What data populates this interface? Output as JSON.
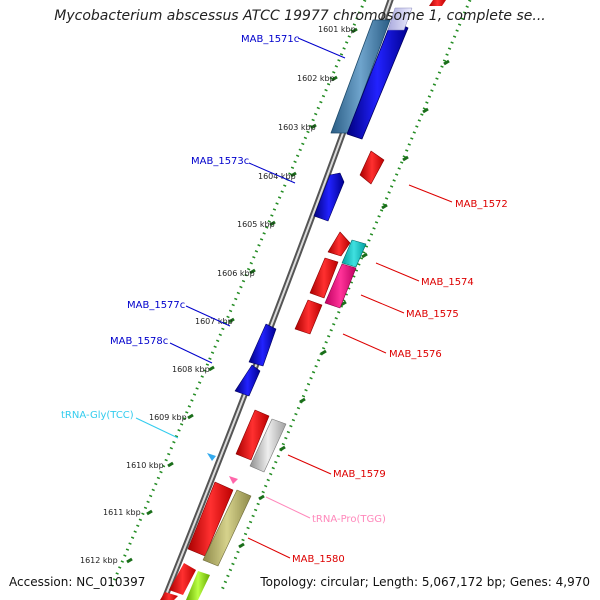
{
  "title": "Mycobacterium abscessus ATCC 19977 chromosome 1, complete se...",
  "footer": {
    "accession": "Accession: NC_010397",
    "topology": "Topology: circular; Length: 5,067,172 bp; Genes: 4,970"
  },
  "colors": {
    "cds_plus": "#ff0000",
    "cds_minus": "#0000ee",
    "trna": "#33ccee",
    "rrna_like": "#ff1493",
    "pseudo": "#c0c0c0",
    "other": "#bdb76b",
    "tick_dots": "#228b22"
  },
  "ticks": [
    "1601 kbp",
    "1602 kbp",
    "1603 kbp",
    "1604 kbp",
    "1605 kbp",
    "1606 kbp",
    "1607 kbp",
    "1608 kbp",
    "1609 kbp",
    "1610 kbp",
    "1611 kbp",
    "1612 kbp"
  ],
  "labels": {
    "mab_1571c": "MAB_1571c",
    "mab_1573c": "MAB_1573c",
    "mab_1577c": "MAB_1577c",
    "mab_1578c": "MAB_1578c",
    "trna_gly": "tRNA-Gly(TCC)",
    "mab_1572": "MAB_1572",
    "mab_1574": "MAB_1574",
    "mab_1575": "MAB_1575",
    "mab_1576": "MAB_1576",
    "mab_1579": "MAB_1579",
    "trna_pro": "tRNA-Pro(TGG)",
    "mab_1580": "MAB_1580"
  }
}
